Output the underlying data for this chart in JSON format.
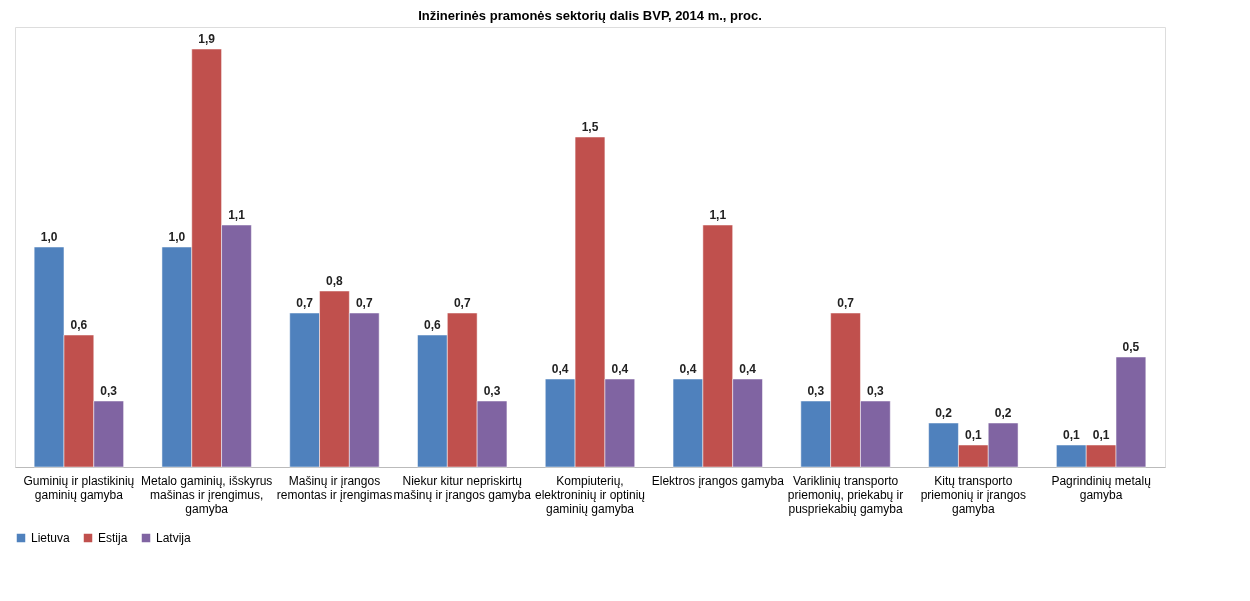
{
  "chart_data": {
    "type": "bar",
    "title": "Inžinerinės pramonės sektorių dalis BVP, 2014 m., proc.",
    "categories": [
      "Guminių ir plastikinių gaminių gamyba",
      "Metalo gaminių, išskyrus mašinas ir įrengimus, gamyba",
      "Mašinų ir įrangos remontas ir įrengimas",
      "Niekur kitur nepriskirtų mašinų ir įrangos gamyba",
      "Kompiuterių, elektroninių ir optinių gaminių gamyba",
      "Elektros įrangos gamyba",
      "Variklinių transporto priemonių, priekabų ir puspriekabių gamyba",
      "Kitų transporto priemonių ir įrangos gamyba",
      "Pagrindinių metalų gamyba"
    ],
    "series": [
      {
        "name": "Lietuva",
        "color": "#4f81bd",
        "values": [
          1.0,
          1.0,
          0.7,
          0.6,
          0.4,
          0.4,
          0.3,
          0.2,
          0.1
        ],
        "value_labels": [
          "1,0",
          "1,0",
          "0,7",
          "0,6",
          "0,4",
          "0,4",
          "0,3",
          "0,2",
          "0,1"
        ]
      },
      {
        "name": "Estija",
        "color": "#c0504d",
        "values": [
          0.6,
          1.9,
          0.8,
          0.7,
          1.5,
          1.1,
          0.7,
          0.1,
          0.1
        ],
        "value_labels": [
          "0,6",
          "1,9",
          "0,8",
          "0,7",
          "1,5",
          "1,1",
          "0,7",
          "0,1",
          "0,1"
        ]
      },
      {
        "name": "Latvija",
        "color": "#8064a2",
        "values": [
          0.3,
          1.1,
          0.7,
          0.3,
          0.4,
          0.4,
          0.3,
          0.2,
          0.5
        ],
        "value_labels": [
          "0,3",
          "1,1",
          "0,7",
          "0,3",
          "0,4",
          "0,4",
          "0,3",
          "0,2",
          "0,5"
        ]
      }
    ],
    "legend": "bottom",
    "grid": false
  }
}
